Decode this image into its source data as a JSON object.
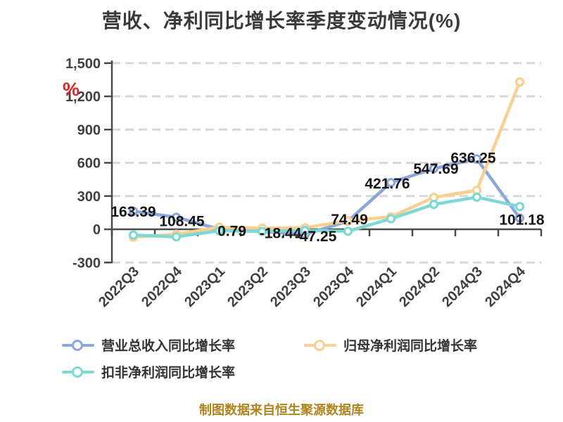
{
  "title": "营收、净利同比增长率季度变动情况(%)",
  "unit_label": "%",
  "source_note": "制图数据来自恒生聚源数据库",
  "chart_data": {
    "type": "line",
    "title": "营收、净利同比增长率季度变动情况(%)",
    "unit": "%",
    "categories": [
      "2022Q3",
      "2022Q4",
      "2023Q1",
      "2023Q2",
      "2023Q3",
      "2023Q4",
      "2024Q1",
      "2024Q2",
      "2024Q3",
      "2024Q4"
    ],
    "series": [
      {
        "name": "营业总收入同比增长率",
        "color": "#8ca7d9",
        "values": [
          163.39,
          108.45,
          0.79,
          -18.44,
          -47.25,
          74.49,
          421.76,
          547.69,
          636.25,
          101.18
        ],
        "data_labels": [
          "163.39",
          "108.45",
          "0.79",
          "-18.44",
          "-47.25",
          "74.49",
          "421.76",
          "547.69",
          "636.25",
          "101.18"
        ]
      },
      {
        "name": "归母净利润同比增长率",
        "color": "#f8d092",
        "values": [
          -72,
          -45,
          19,
          10,
          14,
          77,
          112,
          288,
          352,
          1330
        ],
        "data_labels": null
      },
      {
        "name": "扣非净利润同比增长率",
        "color": "#7ed8d3",
        "values": [
          -52,
          -68,
          -13,
          -19,
          -10,
          -18,
          95,
          225,
          290,
          205
        ],
        "data_labels": null
      }
    ],
    "y_axis": {
      "tick_labels": [
        "1,500",
        "1,200",
        "900",
        "600",
        "300",
        "0",
        "-300"
      ],
      "tick_values": [
        1500,
        1200,
        900,
        600,
        300,
        0,
        -300
      ],
      "ylim": [
        -300,
        1500
      ],
      "unit": "%"
    },
    "x_axis": {
      "labels_rotated_degrees": -45
    },
    "grid": "horizontal-dashed",
    "legend_position": "bottom-left"
  },
  "colors": {
    "series_revenue": "#8ca7d9",
    "series_net_profit": "#f8d092",
    "series_non_gaap": "#7ed8d3",
    "unit_label": "#e02525",
    "source_note": "#b0841c",
    "axis_text": "#3f3f3f",
    "data_label": "#151515",
    "grid_line": "#d8d8d8",
    "axis_line": "#4a4a4a",
    "title_text": "#3a3a3a"
  }
}
